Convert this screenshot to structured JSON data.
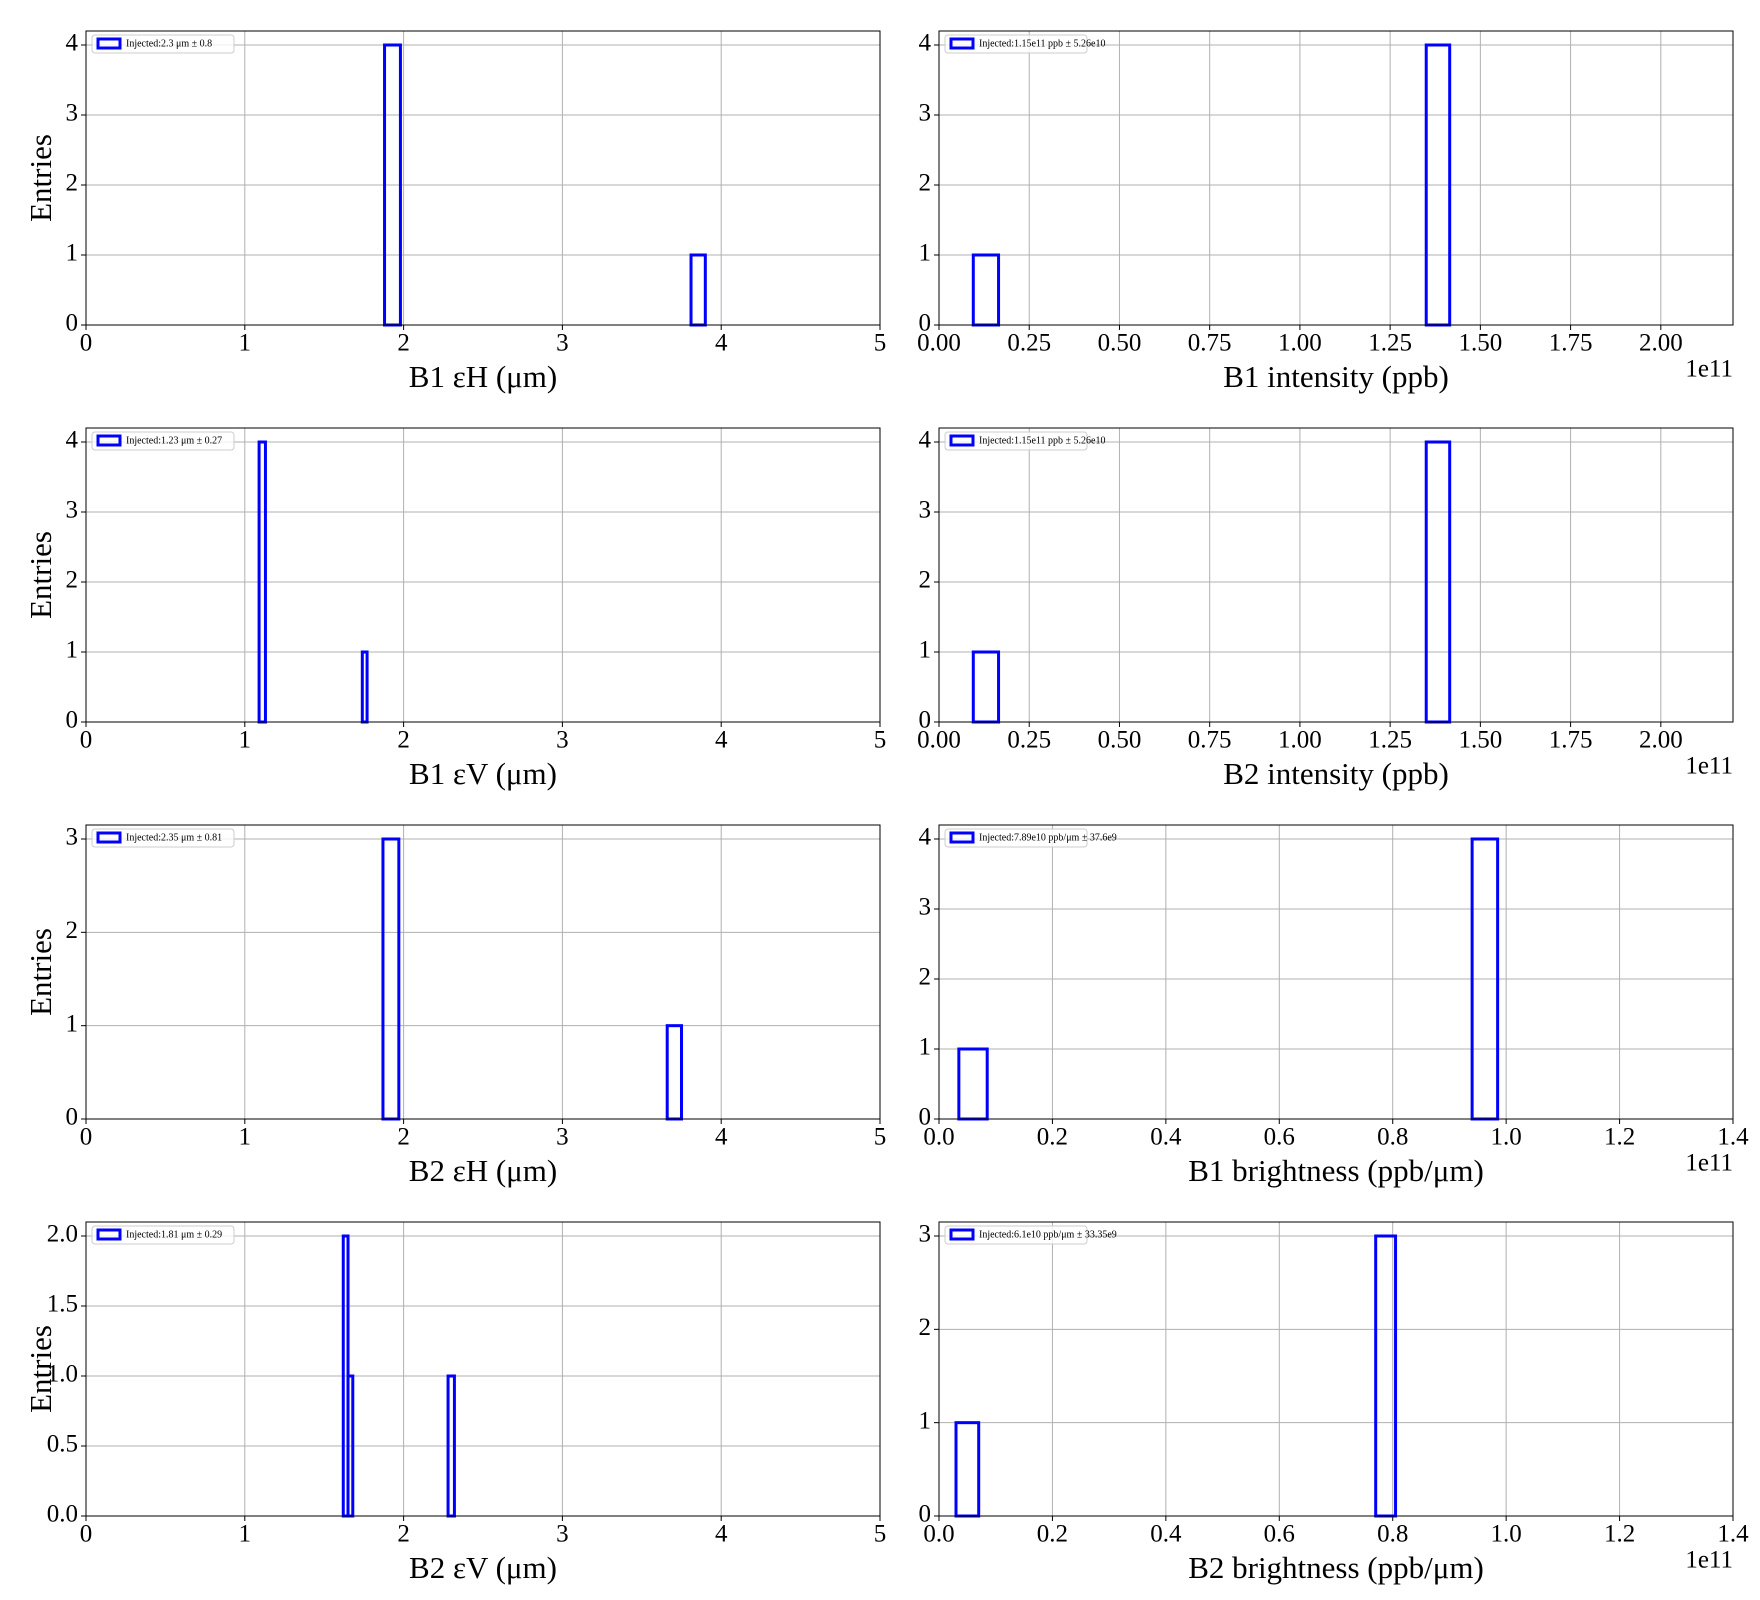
{
  "chart_data": [
    {
      "type": "histogram",
      "xlabel": "B1 εH (μm)",
      "ylabel": "Entries",
      "grid": true,
      "legend": "upper left",
      "bins": [
        1.88,
        1.98,
        3.81,
        3.9
      ],
      "series": [
        {
          "name": "Injected:2.3 μm ± 0.8",
          "color": "#0000ff",
          "values": [
            4,
            0,
            1
          ]
        }
      ],
      "xlim": [
        0,
        5
      ],
      "xticks": [
        0,
        1,
        2,
        3,
        4,
        5
      ],
      "ylim": [
        0,
        4.2
      ],
      "yticks": [
        0,
        1,
        2,
        3,
        4
      ]
    },
    {
      "type": "histogram",
      "xlabel": "B1 intensity (ppb)",
      "x_offset_label": "1e11",
      "grid": true,
      "legend": "upper left",
      "bins": [
        0.095,
        0.165,
        1.35,
        1.415
      ],
      "series": [
        {
          "name": "Injected:1.15e11 ppb ± 5.26e10",
          "color": "#0000ff",
          "values": [
            1,
            0,
            4
          ]
        }
      ],
      "xlim": [
        0,
        2.2
      ],
      "xticks": [
        {
          "value": 0,
          "label": "0.00"
        },
        0.25,
        {
          "value": 0.5,
          "label": "0.50"
        },
        0.75,
        {
          "value": 1,
          "label": "1.00"
        },
        1.25,
        {
          "value": 1.5,
          "label": "1.50"
        },
        1.75,
        {
          "value": 2,
          "label": "2.00"
        }
      ],
      "ylim": [
        0,
        4.2
      ],
      "yticks": [
        0,
        1,
        2,
        3,
        4
      ]
    },
    {
      "type": "histogram",
      "xlabel": "B1 εV (μm)",
      "ylabel": "Entries",
      "grid": true,
      "legend": "upper left",
      "bins": [
        1.09,
        1.13,
        1.74,
        1.77
      ],
      "series": [
        {
          "name": "Injected:1.23 μm ± 0.27",
          "color": "#0000ff",
          "values": [
            4,
            0,
            1
          ]
        }
      ],
      "xlim": [
        0,
        5
      ],
      "xticks": [
        0,
        1,
        2,
        3,
        4,
        5
      ],
      "ylim": [
        0,
        4.2
      ],
      "yticks": [
        0,
        1,
        2,
        3,
        4
      ]
    },
    {
      "type": "histogram",
      "xlabel": "B2 intensity (ppb)",
      "x_offset_label": "1e11",
      "grid": true,
      "legend": "upper left",
      "bins": [
        0.095,
        0.165,
        1.35,
        1.415
      ],
      "series": [
        {
          "name": "Injected:1.15e11 ppb ± 5.26e10",
          "color": "#0000ff",
          "values": [
            1,
            0,
            4
          ]
        }
      ],
      "xlim": [
        0,
        2.2
      ],
      "xticks": [
        {
          "value": 0,
          "label": "0.00"
        },
        0.25,
        {
          "value": 0.5,
          "label": "0.50"
        },
        0.75,
        {
          "value": 1,
          "label": "1.00"
        },
        1.25,
        {
          "value": 1.5,
          "label": "1.50"
        },
        1.75,
        {
          "value": 2,
          "label": "2.00"
        }
      ],
      "ylim": [
        0,
        4.2
      ],
      "yticks": [
        0,
        1,
        2,
        3,
        4
      ]
    },
    {
      "type": "histogram",
      "xlabel": "B2 εH (μm)",
      "ylabel": "Entries",
      "grid": true,
      "legend": "upper left",
      "bins": [
        1.87,
        1.97,
        3.66,
        3.75
      ],
      "series": [
        {
          "name": "Injected:2.35 μm ± 0.81",
          "color": "#0000ff",
          "values": [
            3,
            0,
            1
          ]
        }
      ],
      "xlim": [
        0,
        5
      ],
      "xticks": [
        0,
        1,
        2,
        3,
        4,
        5
      ],
      "ylim": [
        0,
        3.15
      ],
      "yticks": [
        0,
        1,
        2,
        3
      ]
    },
    {
      "type": "histogram",
      "xlabel": "B1 brightness (ppb/μm)",
      "x_offset_label": "1e11",
      "grid": true,
      "legend": "upper left",
      "bins": [
        0.035,
        0.085,
        0.94,
        0.985
      ],
      "series": [
        {
          "name": "Injected:7.89e10 ppb/μm ± 37.6e9",
          "color": "#0000ff",
          "values": [
            1,
            0,
            4
          ]
        }
      ],
      "xlim": [
        0,
        1.4
      ],
      "xticks": [
        {
          "value": 0,
          "label": "0.0"
        },
        0.2,
        0.4,
        0.6,
        0.8,
        {
          "value": 1,
          "label": "1.0"
        },
        1.2,
        1.4
      ],
      "ylim": [
        0,
        4.2
      ],
      "yticks": [
        0,
        1,
        2,
        3,
        4
      ]
    },
    {
      "type": "histogram",
      "xlabel": "B2 εV (μm)",
      "ylabel": "Entries",
      "grid": true,
      "legend": "upper left",
      "bins": [
        1.62,
        1.65,
        1.68,
        2.28,
        2.32
      ],
      "series": [
        {
          "name": "Injected:1.81 μm ± 0.29",
          "color": "#0000ff",
          "values": [
            2,
            1,
            0,
            1
          ]
        }
      ],
      "xlim": [
        0,
        5
      ],
      "xticks": [
        0,
        1,
        2,
        3,
        4,
        5
      ],
      "ylim": [
        0,
        2.1
      ],
      "yticks": [
        {
          "value": 0,
          "label": "0.0"
        },
        0.5,
        {
          "value": 1,
          "label": "1.0"
        },
        1.5,
        {
          "value": 2,
          "label": "2.0"
        }
      ]
    },
    {
      "type": "histogram",
      "xlabel": "B2 brightness (ppb/μm)",
      "x_offset_label": "1e11",
      "grid": true,
      "legend": "upper left",
      "bins": [
        0.03,
        0.07,
        0.77,
        0.805
      ],
      "series": [
        {
          "name": "Injected:6.1e10 ppb/μm ± 33.35e9",
          "color": "#0000ff",
          "values": [
            1,
            0,
            3
          ]
        }
      ],
      "xlim": [
        0,
        1.4
      ],
      "xticks": [
        {
          "value": 0,
          "label": "0.0"
        },
        0.2,
        0.4,
        0.6,
        0.8,
        {
          "value": 1,
          "label": "1.0"
        },
        1.2,
        1.4
      ],
      "ylim": [
        0,
        3.15
      ],
      "yticks": [
        0,
        1,
        2,
        3
      ]
    }
  ]
}
